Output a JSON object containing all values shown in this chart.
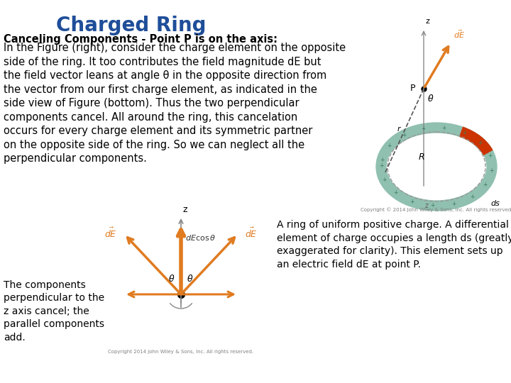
{
  "title": "Charged Ring",
  "title_color": "#1F4E99",
  "title_fontsize": 20,
  "bg_color": "#ffffff",
  "heading_bold": "Canceling Components - Point P is on the axis:",
  "body_text": "In the Figure (right), consider the charge element on the opposite\nside of the ring. It too contributes the field magnitude dE but\nthe field vector leans at angle θ in the opposite direction from\nthe vector from our first charge element, as indicated in the\nside view of Figure (bottom). Thus the two perpendicular\ncomponents cancel. All around the ring, this cancelation\noccurs for every charge element and its symmetric partner\non the opposite side of the ring. So we can neglect all the\nperpendicular components.",
  "left_caption": "The components\nperpendicular to the\nz axis cancel; the\nparallel components\nadd.",
  "right_caption": "A ring of uniform positive charge. A differential\nelement of charge occupies a length ds (greatly\nexaggerated for clarity). This element sets up\nan electric field dE at point P.",
  "arrow_color": "#E07B20",
  "ring_color": "#90C0B0",
  "ring_highlight": "#CC3300",
  "text_fontsize": 10.5,
  "caption_fontsize": 10,
  "copyright_left": "Copyright 2014 John Wiley & Sons, Inc. All rights reserved.",
  "copyright_right": "Copyright © 2014 John Wiley & Sons, Inc. All rights reserved."
}
